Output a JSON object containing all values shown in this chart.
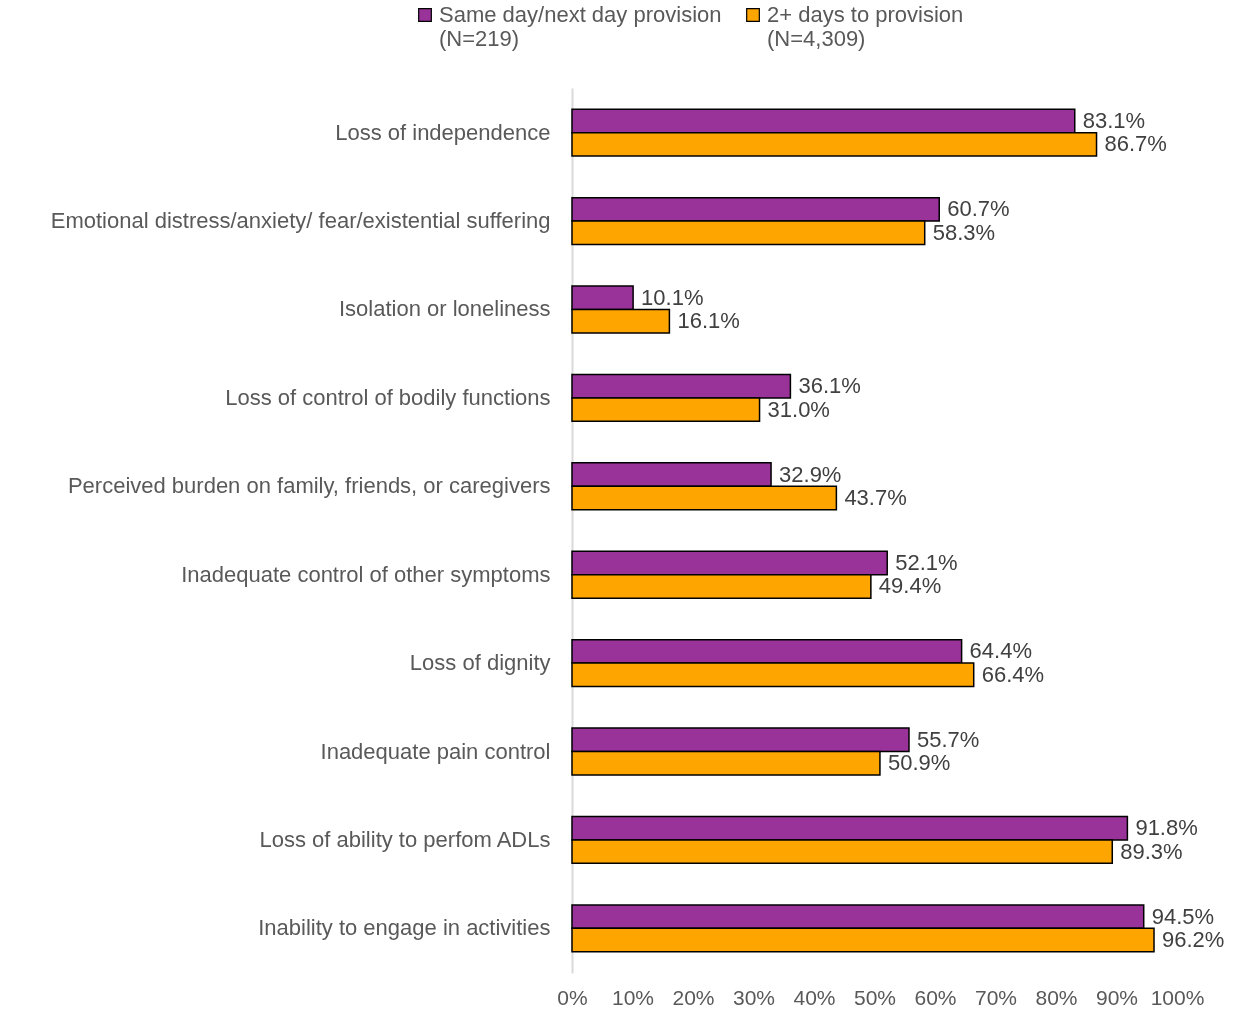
{
  "chart_data": {
    "type": "bar",
    "orientation": "horizontal",
    "legend": "top",
    "grid": false,
    "categories": [
      "Loss of independence",
      "Emotional distress/anxiety/ fear/existential suffering",
      "Isolation or loneliness",
      "Loss of control of bodily functions",
      "Perceived burden on family, friends, or caregivers",
      "Inadequate control of other symptoms",
      "Loss of dignity",
      "Inadequate pain control",
      "Loss of ability to perfom ADLs",
      "Inability to engage in activities"
    ],
    "series": [
      {
        "name": "Same day/next day provision\n(N=219)",
        "color": "#993399",
        "values": [
          83.1,
          60.7,
          10.1,
          36.1,
          32.9,
          52.1,
          64.4,
          55.7,
          91.8,
          94.5
        ],
        "value_labels": [
          "83.1%",
          "60.7%",
          "10.1%",
          "36.1%",
          "32.9%",
          "52.1%",
          "64.4%",
          "55.7%",
          "91.8%",
          "94.5%"
        ]
      },
      {
        "name": "2+ days to provision\n(N=4,309)",
        "color": "#ffa500",
        "values": [
          86.7,
          58.3,
          16.1,
          31.0,
          43.7,
          49.4,
          66.4,
          50.9,
          89.3,
          96.2
        ],
        "value_labels": [
          "86.7%",
          "58.3%",
          "16.1%",
          "31.0%",
          "43.7%",
          "49.4%",
          "66.4%",
          "50.9%",
          "89.3%",
          "96.2%"
        ]
      }
    ],
    "xlim": [
      0,
      100
    ],
    "xticks": [
      {
        "value": 0,
        "label": "0%"
      },
      {
        "value": 10,
        "label": "10%"
      },
      {
        "value": 20,
        "label": "20%"
      },
      {
        "value": 30,
        "label": "30%"
      },
      {
        "value": 40,
        "label": "40%"
      },
      {
        "value": 50,
        "label": "50%"
      },
      {
        "value": 60,
        "label": "60%"
      },
      {
        "value": 70,
        "label": "70%"
      },
      {
        "value": 80,
        "label": "80%"
      },
      {
        "value": 90,
        "label": "90%"
      },
      {
        "value": 100,
        "label": "100%"
      }
    ]
  }
}
